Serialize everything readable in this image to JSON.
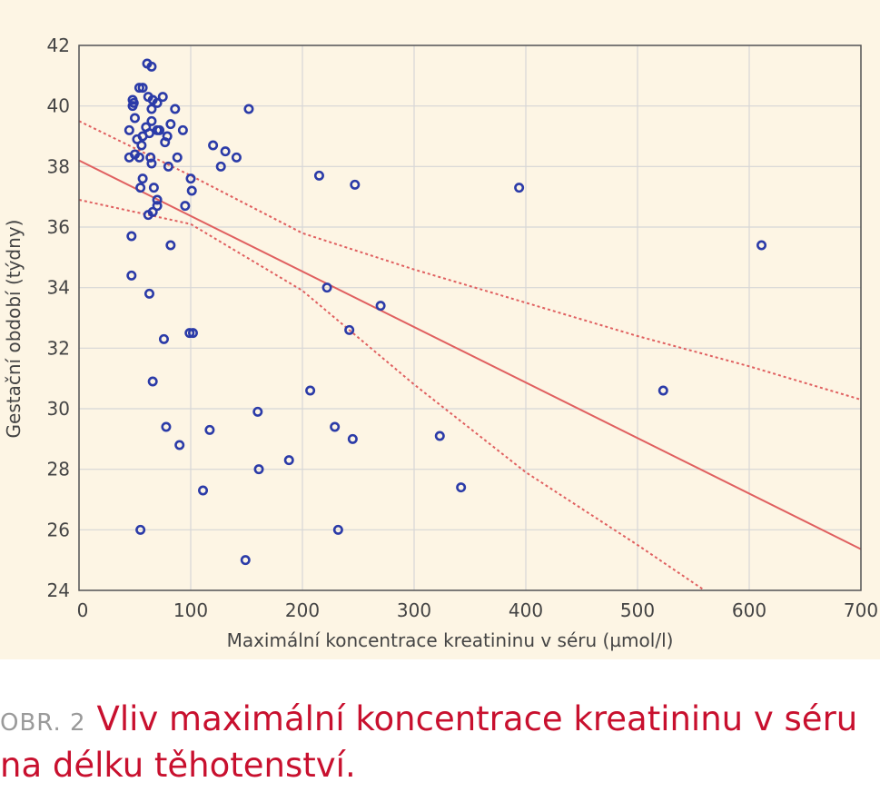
{
  "chart_data": {
    "type": "scatter",
    "xlabel": "Maximální koncentrace kreatininu v séru (µmol/l)",
    "ylabel": "Gestační období (týdny)",
    "xlim": [
      0,
      700
    ],
    "ylim": [
      24,
      42
    ],
    "xticks": [
      0,
      100,
      200,
      300,
      400,
      500,
      600,
      700
    ],
    "yticks": [
      24,
      26,
      28,
      30,
      32,
      34,
      36,
      38,
      40,
      42
    ],
    "grid": true,
    "points": [
      [
        61,
        41.4
      ],
      [
        65,
        41.3
      ],
      [
        54,
        40.6
      ],
      [
        57,
        40.6
      ],
      [
        48,
        40.2
      ],
      [
        49,
        40.1
      ],
      [
        48,
        40.0
      ],
      [
        62,
        40.3
      ],
      [
        66,
        40.2
      ],
      [
        70,
        40.1
      ],
      [
        75,
        40.3
      ],
      [
        65,
        39.9
      ],
      [
        86,
        39.9
      ],
      [
        152,
        39.9
      ],
      [
        50,
        39.6
      ],
      [
        65,
        39.5
      ],
      [
        82,
        39.4
      ],
      [
        45,
        39.2
      ],
      [
        60,
        39.3
      ],
      [
        72,
        39.2
      ],
      [
        93,
        39.2
      ],
      [
        52,
        38.9
      ],
      [
        57,
        39.0
      ],
      [
        63,
        39.1
      ],
      [
        70,
        39.2
      ],
      [
        79,
        39.0
      ],
      [
        56,
        38.7
      ],
      [
        77,
        38.8
      ],
      [
        120,
        38.7
      ],
      [
        131,
        38.5
      ],
      [
        141,
        38.3
      ],
      [
        45,
        38.3
      ],
      [
        50,
        38.4
      ],
      [
        54,
        38.3
      ],
      [
        64,
        38.3
      ],
      [
        88,
        38.3
      ],
      [
        65,
        38.1
      ],
      [
        80,
        38.0
      ],
      [
        127,
        38.0
      ],
      [
        215,
        37.7
      ],
      [
        247,
        37.4
      ],
      [
        57,
        37.6
      ],
      [
        100,
        37.6
      ],
      [
        55,
        37.3
      ],
      [
        67,
        37.3
      ],
      [
        101,
        37.2
      ],
      [
        394,
        37.3
      ],
      [
        70,
        36.9
      ],
      [
        70,
        36.7
      ],
      [
        95,
        36.7
      ],
      [
        66,
        36.5
      ],
      [
        62,
        36.4
      ],
      [
        47,
        35.7
      ],
      [
        82,
        35.4
      ],
      [
        611,
        35.4
      ],
      [
        47,
        34.4
      ],
      [
        222,
        34.0
      ],
      [
        63,
        33.8
      ],
      [
        270,
        33.4
      ],
      [
        242,
        32.6
      ],
      [
        99,
        32.5
      ],
      [
        102,
        32.5
      ],
      [
        76,
        32.3
      ],
      [
        66,
        30.9
      ],
      [
        207,
        30.6
      ],
      [
        523,
        30.6
      ],
      [
        160,
        29.9
      ],
      [
        78,
        29.4
      ],
      [
        117,
        29.3
      ],
      [
        229,
        29.4
      ],
      [
        245,
        29.0
      ],
      [
        323,
        29.1
      ],
      [
        90,
        28.8
      ],
      [
        188,
        28.3
      ],
      [
        161,
        28.0
      ],
      [
        342,
        27.4
      ],
      [
        111,
        27.3
      ],
      [
        55,
        26.0
      ],
      [
        232,
        26.0
      ],
      [
        149,
        25.0
      ]
    ],
    "regression": {
      "intercept": 38.2,
      "slope": -0.01834
    },
    "confidence_band": {
      "upper": [
        [
          0,
          39.5
        ],
        [
          100,
          37.7
        ],
        [
          200,
          35.8
        ],
        [
          300,
          34.6
        ],
        [
          400,
          33.5
        ],
        [
          500,
          32.4
        ],
        [
          600,
          31.4
        ],
        [
          700,
          30.3
        ]
      ],
      "lower": [
        [
          0,
          36.9
        ],
        [
          100,
          36.1
        ],
        [
          200,
          33.9
        ],
        [
          300,
          30.8
        ],
        [
          400,
          27.9
        ],
        [
          500,
          25.5
        ],
        [
          560,
          24.0
        ]
      ]
    },
    "colors": {
      "points": "#2b3ba8",
      "line": "#e06060",
      "band": "#e06060",
      "grid": "#d6d6d6",
      "panel": "#fdf5e4"
    }
  },
  "caption": {
    "prefix": "OBR. 2",
    "text": "Vliv maximální koncentrace kreatininu v séru na délku těhotenství."
  }
}
